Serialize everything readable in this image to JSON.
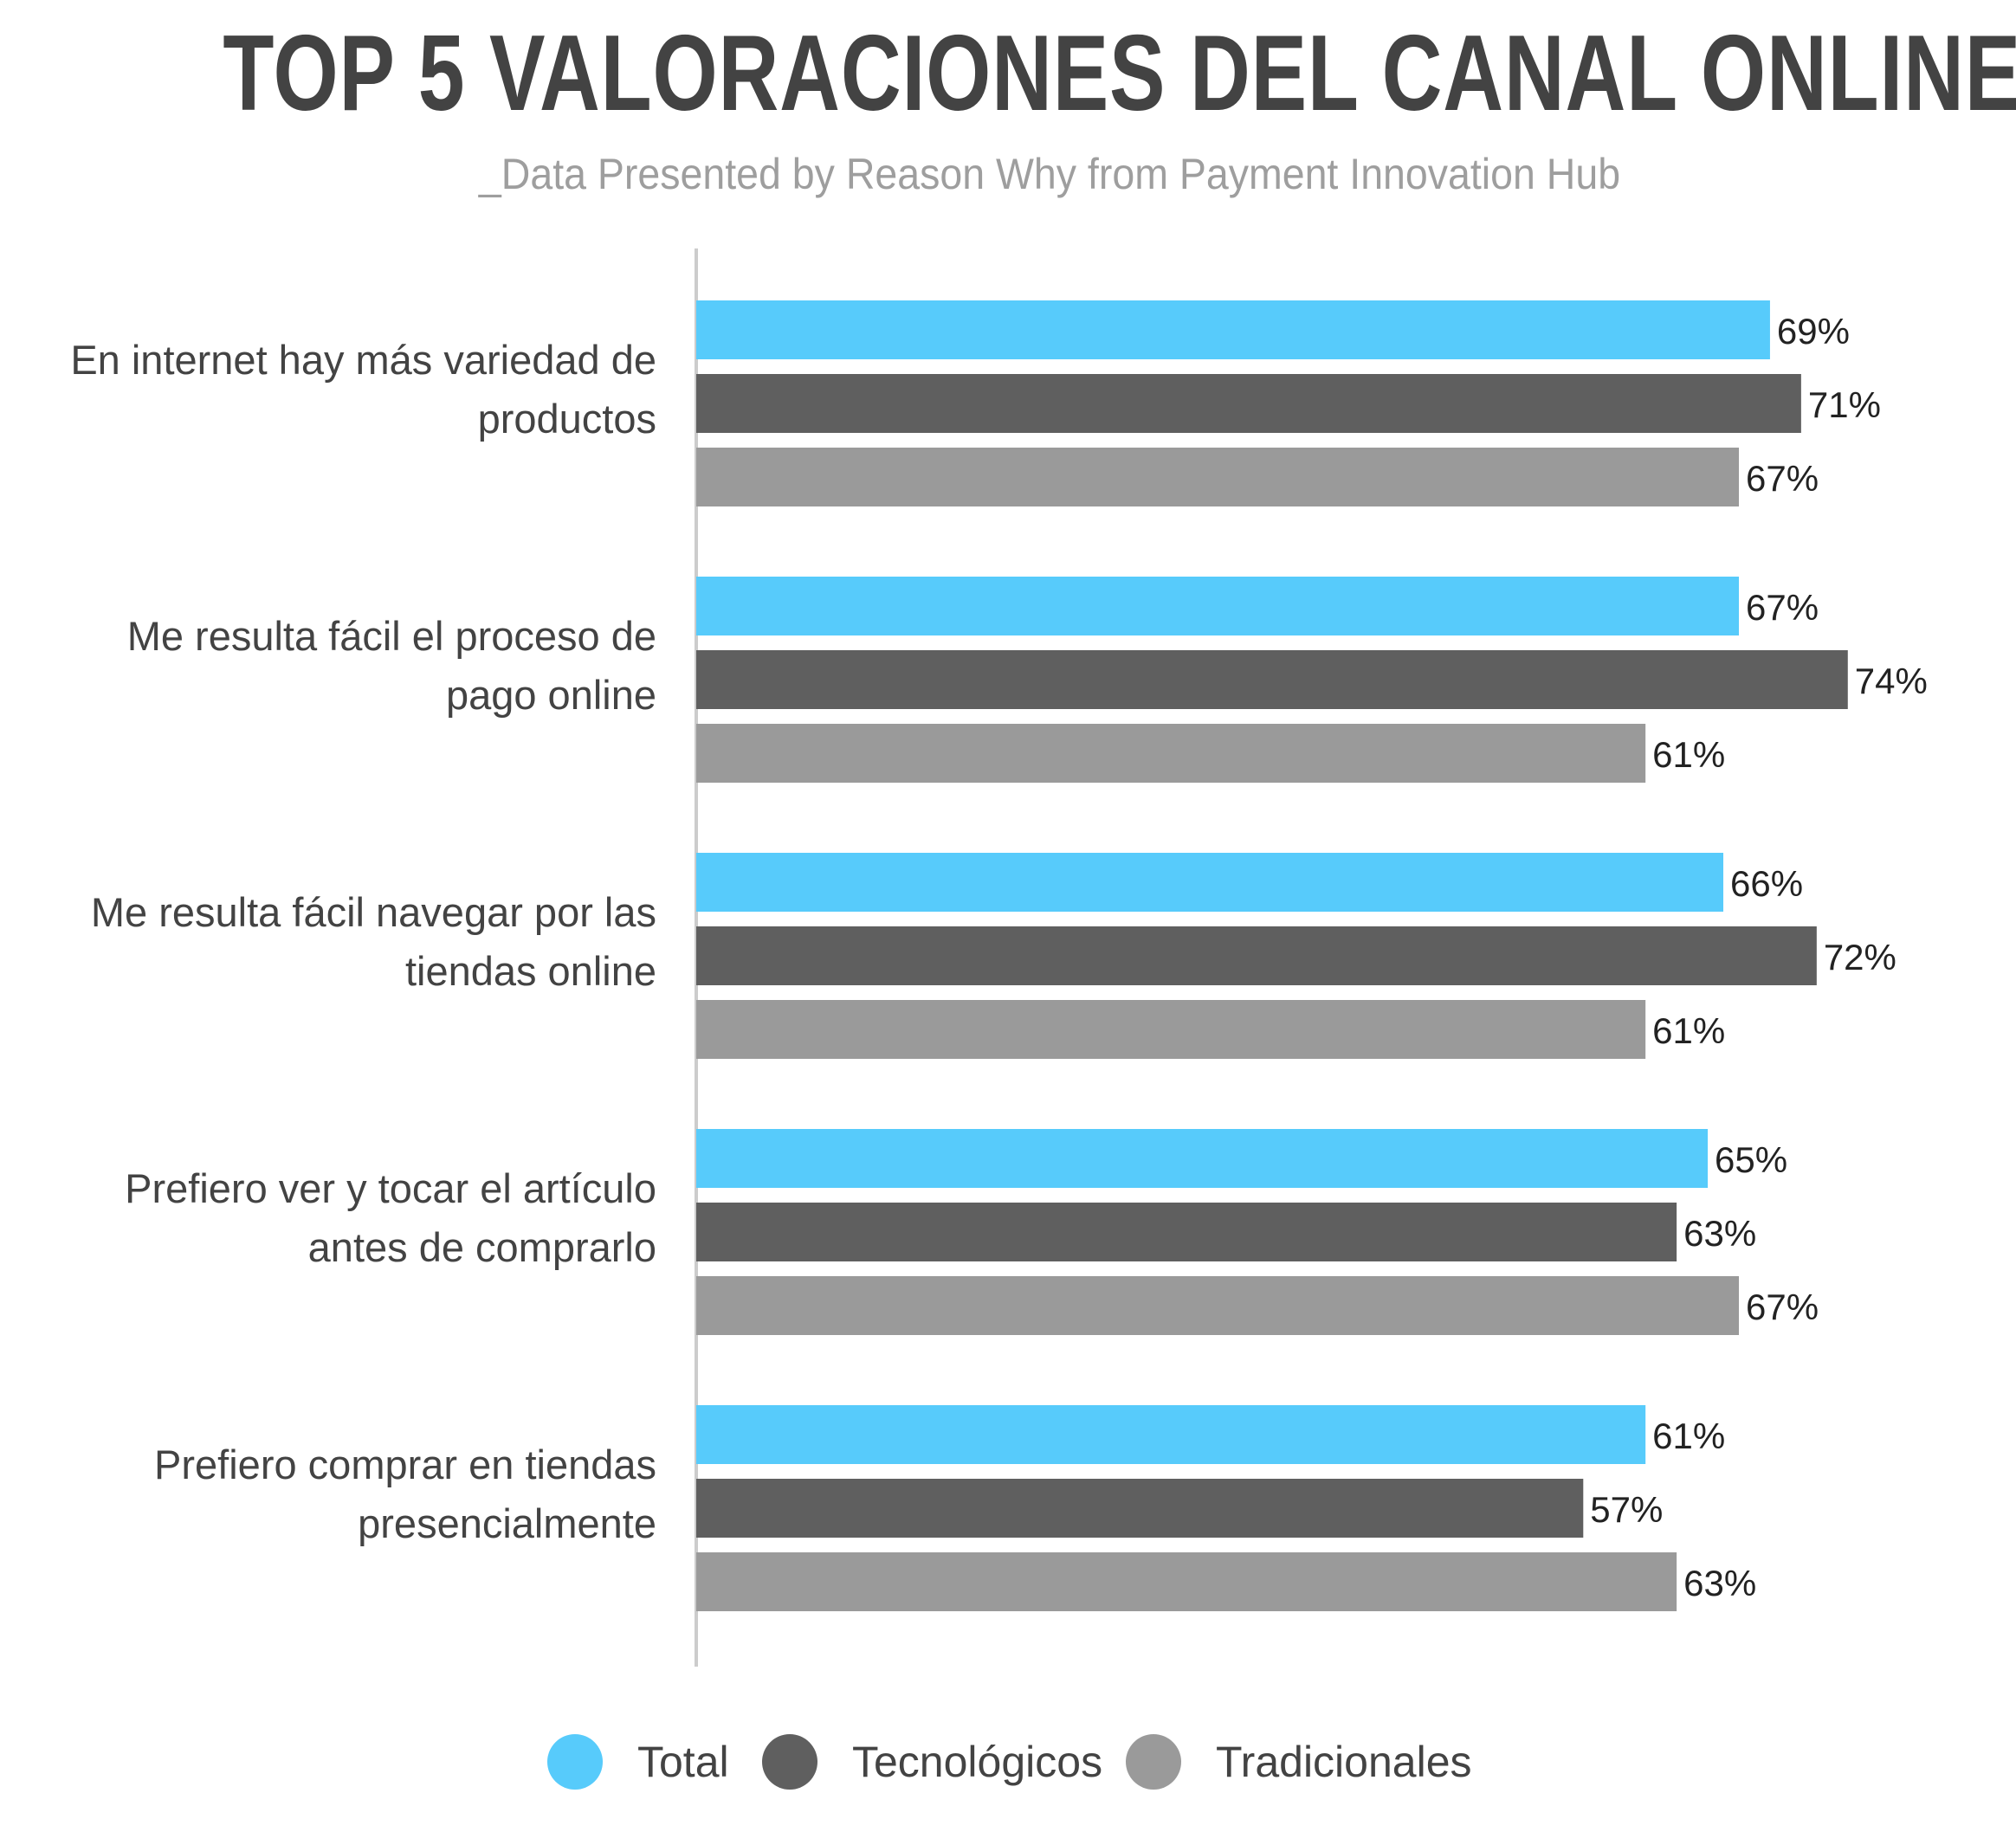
{
  "colors": {
    "total": "#57cbfb",
    "tecnologicos": "#5f5f5f",
    "tradicionales": "#9a9a9a",
    "axis": "#cccccc",
    "text": "#434343",
    "subtitle": "#9e9e9e"
  },
  "chart_data": {
    "type": "bar",
    "orientation": "horizontal",
    "title": "TOP 5 VALORACIONES DEL CANAL ONLINE",
    "subtitle": "_Data Presented by Reason Why from Payment Innovation Hub",
    "categories": [
      [
        "En internet hay más variedad de",
        "productos"
      ],
      [
        "Me resulta fácil el proceso de",
        "pago online"
      ],
      [
        "Me resulta fácil navegar por las",
        "tiendas online"
      ],
      [
        "Prefiero ver y tocar el artículo",
        "antes de comprarlo"
      ],
      [
        "Prefiero comprar en tiendas",
        "presencialmente"
      ]
    ],
    "series": [
      {
        "name": "Total",
        "values": [
          69,
          67,
          66,
          65,
          61
        ],
        "labels": [
          "69%",
          "67%",
          "66%",
          "65%",
          "61%"
        ]
      },
      {
        "name": "Tecnológicos",
        "values": [
          71,
          74,
          72,
          63,
          57
        ],
        "labels": [
          "71%",
          "74%",
          "72%",
          "63%",
          "57%"
        ]
      },
      {
        "name": "Tradicionales",
        "values": [
          67,
          61,
          61,
          67,
          63
        ],
        "labels": [
          "67%",
          "61%",
          "61%",
          "67%",
          "63%"
        ]
      }
    ],
    "xlim": [
      0,
      100
    ],
    "grid": false,
    "legend_position": "bottom"
  },
  "legend": {
    "total_label": "Total",
    "tecnologicos_label": "Tecnológicos",
    "tradicionales_label": "Tradicionales"
  }
}
